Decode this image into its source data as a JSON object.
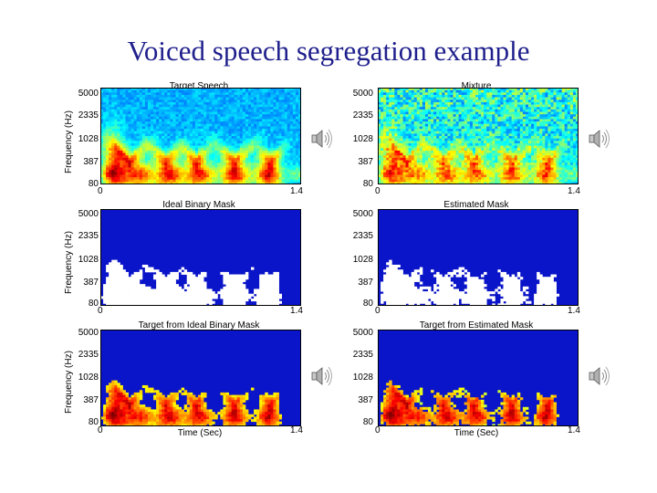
{
  "slide": {
    "title": "Voiced speech segregation example"
  },
  "panels": [
    {
      "title": "Target Speech",
      "kind": "spectrogram"
    },
    {
      "title": "Mixture",
      "kind": "mixture"
    },
    {
      "title": "Ideal Binary Mask",
      "kind": "mask"
    },
    {
      "title": "Estimated Mask",
      "kind": "estmask"
    },
    {
      "title": "Target from Ideal Binary Mask",
      "kind": "masked"
    },
    {
      "title": "Target from Estimated Mask",
      "kind": "estmasked"
    }
  ],
  "axes": {
    "y_ticks": [
      "5000",
      "2335",
      "1028",
      "387",
      "80"
    ],
    "x_start": "0",
    "x_end": "1.4",
    "ylabel": "Frequency (Hz)",
    "xlabel": "Time (Sec)"
  },
  "icons": {
    "speaker": "speaker-icon"
  },
  "colors": {
    "title": "#1f1f8c",
    "mask_bg": "#0a14c8"
  }
}
